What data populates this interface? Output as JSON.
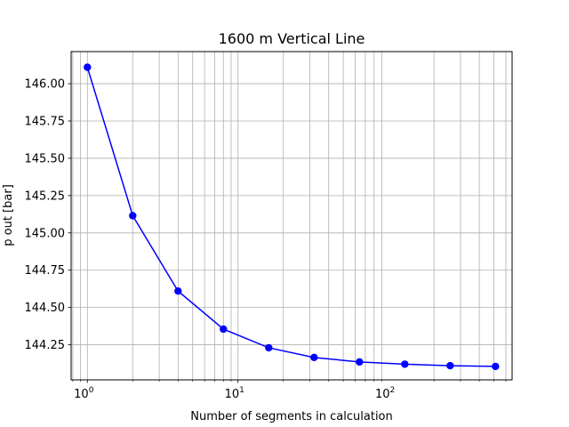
{
  "chart_data": {
    "type": "line",
    "title": "1600 m Vertical Line",
    "xlabel": "Number of segments in calculation",
    "ylabel": "p out [bar]",
    "xscale": "log",
    "xlim": [
      0.78,
      660
    ],
    "ylim": [
      144.015,
      146.215
    ],
    "grid": "both",
    "line_color": "#0000ff",
    "grid_color": "#b0b0b0",
    "x_ticks": [
      {
        "value": 1,
        "mantissa": "10",
        "exp": "0"
      },
      {
        "value": 10,
        "mantissa": "10",
        "exp": "1"
      },
      {
        "value": 100,
        "mantissa": "10",
        "exp": "2"
      }
    ],
    "y_ticks": [
      "144.25",
      "144.50",
      "144.75",
      "145.00",
      "145.25",
      "145.50",
      "145.75",
      "146.00"
    ],
    "series": [
      {
        "x": [
          1,
          2,
          4,
          8,
          16,
          32,
          64,
          128,
          256,
          512
        ],
        "y": [
          146.11,
          145.115,
          144.61,
          144.355,
          144.23,
          144.165,
          144.135,
          144.12,
          144.11,
          144.105
        ]
      }
    ]
  }
}
